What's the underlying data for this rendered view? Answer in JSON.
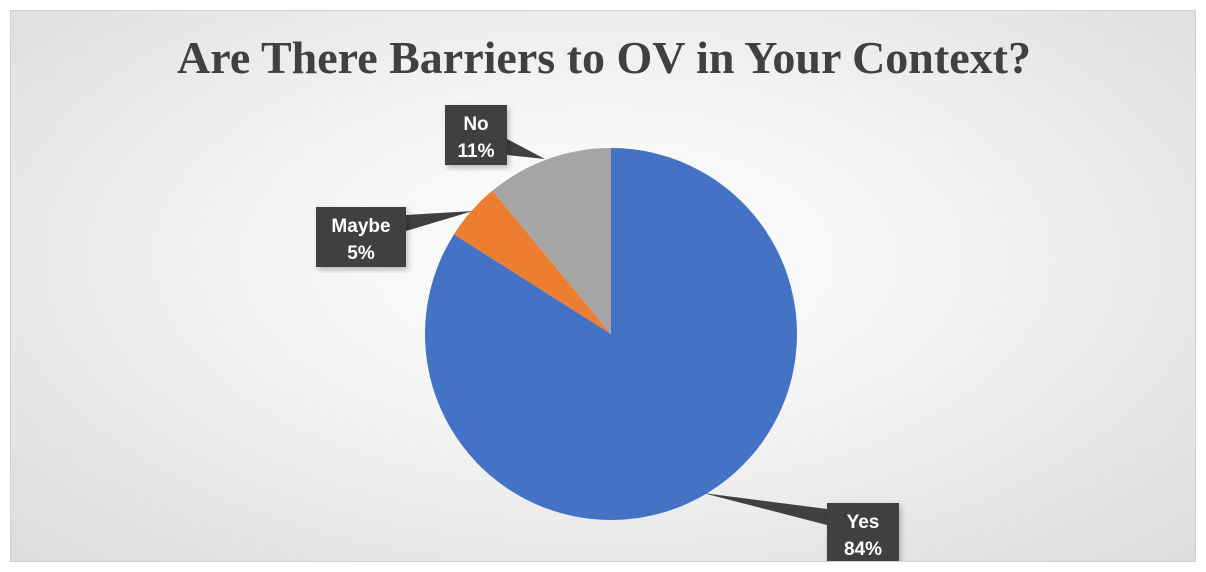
{
  "chart_data": {
    "type": "pie",
    "title": "Are There Barriers to OV in Your Context?",
    "start_angle_deg": 0,
    "direction": "clockwise",
    "slices": [
      {
        "label": "Yes",
        "value": 84,
        "percent_label": "84%",
        "color": "#4472C4"
      },
      {
        "label": "Maybe",
        "value": 5,
        "percent_label": "5%",
        "color": "#ED7D31"
      },
      {
        "label": "No",
        "value": 11,
        "percent_label": "11%",
        "color": "#A5A5A5"
      }
    ],
    "data_labels": "callouts-outside",
    "legend": "none"
  }
}
